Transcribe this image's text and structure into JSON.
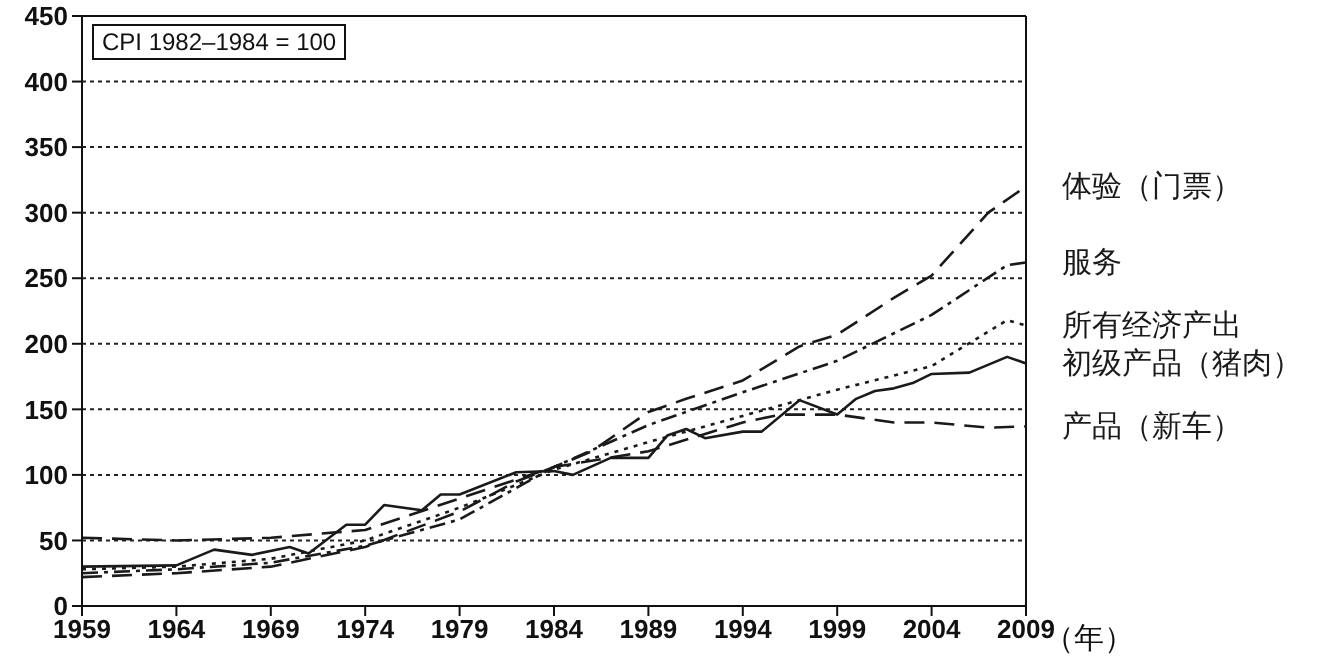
{
  "chart_data": {
    "type": "line",
    "xlabel": "（年）",
    "annotations": [
      "CPI 1982–1984 = 100"
    ],
    "xlim": [
      1959,
      2009
    ],
    "xticks": [
      1959,
      1964,
      1969,
      1974,
      1979,
      1984,
      1989,
      1994,
      1999,
      2004,
      2009
    ],
    "ylim": [
      0,
      450
    ],
    "yticks": [
      0,
      50,
      100,
      150,
      200,
      250,
      300,
      350,
      400,
      450
    ],
    "grid": "y",
    "legend": false,
    "marker": "none",
    "series": [
      {
        "name": "体验（门票）",
        "color": "#1a1a1a",
        "line_style": "dashed",
        "x": [
          1959,
          1964,
          1969,
          1974,
          1979,
          1982,
          1984,
          1986,
          1989,
          1991,
          1994,
          1997,
          1999,
          2002,
          2004,
          2007,
          2009
        ],
        "values": [
          22,
          25,
          30,
          45,
          72,
          95,
          106,
          118,
          148,
          158,
          172,
          198,
          207,
          235,
          252,
          300,
          320
        ]
      },
      {
        "name": "服务",
        "color": "#1a1a1a",
        "line_style": "dashdot",
        "x": [
          1959,
          1964,
          1969,
          1974,
          1979,
          1984,
          1989,
          1994,
          1999,
          2004,
          2008,
          2009
        ],
        "values": [
          25,
          28,
          33,
          46,
          66,
          106,
          138,
          163,
          187,
          222,
          260,
          262
        ]
      },
      {
        "name": "所有经济产出",
        "color": "#1a1a1a",
        "line_style": "dotted",
        "x": [
          1959,
          1964,
          1969,
          1974,
          1979,
          1984,
          1989,
          1994,
          1999,
          2004,
          2008,
          2009
        ],
        "values": [
          28,
          30,
          36,
          50,
          75,
          104,
          125,
          145,
          165,
          183,
          218,
          214
        ]
      },
      {
        "name": "初级产品（猪肉）",
        "color": "#1a1a1a",
        "line_style": "solid",
        "x": [
          1959,
          1964,
          1966,
          1968,
          1970,
          1971,
          1973,
          1974,
          1975,
          1977,
          1978,
          1979,
          1982,
          1984,
          1985,
          1987,
          1989,
          1990,
          1991,
          1992,
          1994,
          1995,
          1997,
          1999,
          2000,
          2001,
          2002,
          2003,
          2004,
          2006,
          2008,
          2009
        ],
        "values": [
          30,
          31,
          43,
          39,
          45,
          40,
          62,
          62,
          77,
          73,
          85,
          85,
          102,
          103,
          100,
          113,
          113,
          130,
          135,
          128,
          133,
          133,
          157,
          146,
          158,
          164,
          166,
          170,
          177,
          178,
          190,
          185
        ]
      },
      {
        "name": "产品（新车）",
        "color": "#1a1a1a",
        "line_style": "dashed",
        "x": [
          1959,
          1964,
          1969,
          1974,
          1979,
          1984,
          1989,
          1994,
          1996,
          1999,
          2002,
          2004,
          2007,
          2009
        ],
        "values": [
          52,
          50,
          52,
          58,
          82,
          106,
          118,
          140,
          146,
          146,
          140,
          140,
          136,
          137
        ]
      }
    ]
  }
}
